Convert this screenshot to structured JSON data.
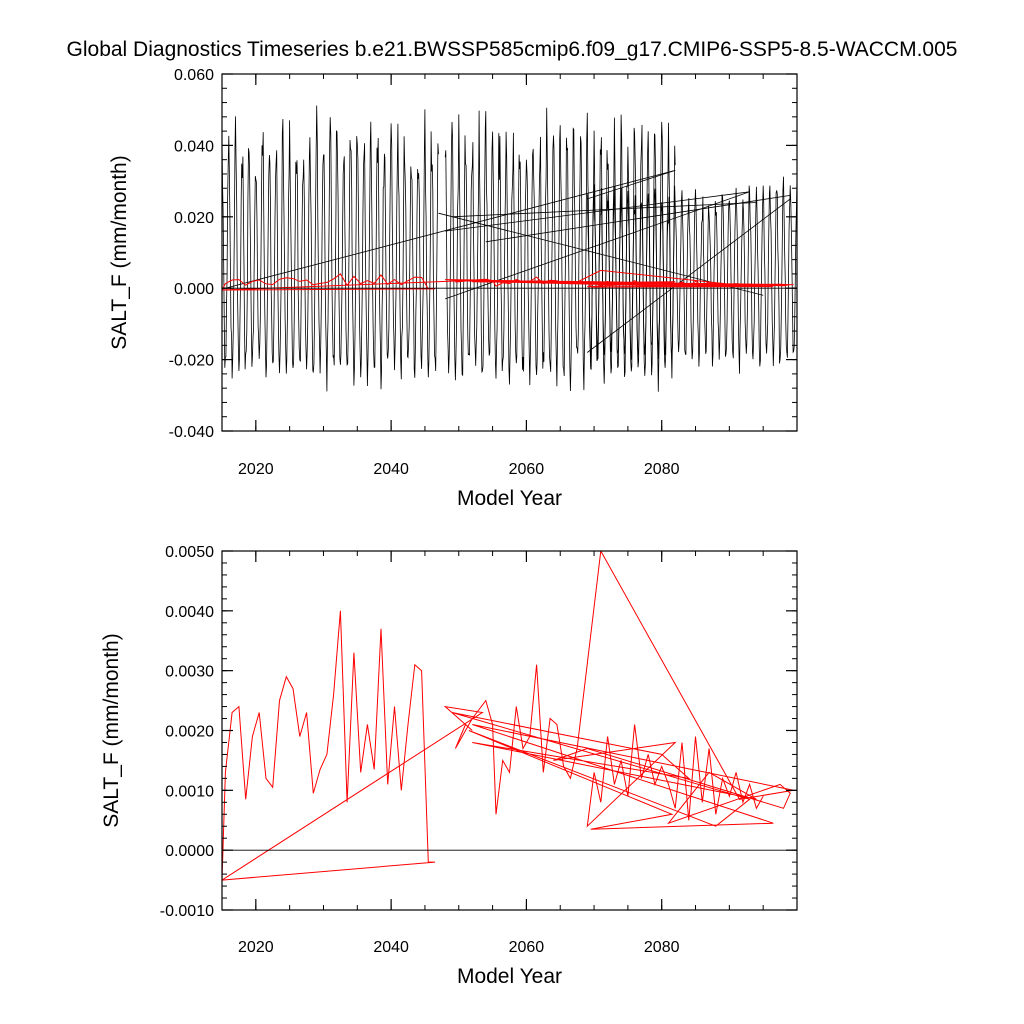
{
  "title": "Global Diagnostics Timeseries b.e21.BWSSP585cmip6.f09_g17.CMIP6-SSP5-8.5-WACCM.005",
  "colors": {
    "monthly_series": "#000000",
    "annual_series": "#ff0000",
    "axis": "#000000",
    "zero_line": "#000000"
  },
  "chart_data": [
    {
      "type": "line",
      "panel": "top",
      "xlabel": "Model Year",
      "ylabel": "SALT_F (mm/month)",
      "xlim": [
        2015,
        2100
      ],
      "ylim": [
        -0.04,
        0.06
      ],
      "xticks": [
        2020,
        2040,
        2060,
        2080
      ],
      "xtick_labels": [
        "2020",
        "2040",
        "2060",
        "2080"
      ],
      "yticks": [
        -0.04,
        -0.02,
        0.0,
        0.02,
        0.04,
        0.06
      ],
      "ytick_labels": [
        "-0.040",
        "-0.020",
        "0.000",
        "0.020",
        "0.040",
        "0.060"
      ],
      "zero_line": 0.0,
      "series": [
        {
          "name": "monthly",
          "color": "#000000",
          "description": "monthly values oscillating roughly between -0.028 and 0.055 with an annual cycle; several restart segments jump back in time",
          "segments": [
            {
              "start_year": 2015.0,
              "end_year": 2047.0,
              "peak": 0.05,
              "trough": -0.026
            },
            {
              "start_year": 2048.0,
              "end_year": 2082.0,
              "peak": 0.05,
              "trough": -0.027
            },
            {
              "start_year": 2069.0,
              "end_year": 2100.0,
              "peak": 0.03,
              "trough": -0.022
            }
          ],
          "connector_lines": [
            [
              [
                2015.5,
                0.0
              ],
              [
                2082.0,
                0.033
              ]
            ],
            [
              [
                2082.0,
                0.033
              ],
              [
                2069.0,
                0.025
              ]
            ],
            [
              [
                2047.0,
                0.021
              ],
              [
                2095.0,
                -0.002
              ]
            ],
            [
              [
                2048.0,
                0.016
              ],
              [
                2093.0,
                0.027
              ]
            ],
            [
              [
                2048.0,
                -0.003
              ],
              [
                2093.0,
                0.027
              ]
            ],
            [
              [
                2069.0,
                -0.018
              ],
              [
                2099.0,
                0.025
              ]
            ],
            [
              [
                2049.0,
                0.02
              ],
              [
                2094.0,
                0.024
              ]
            ],
            [
              [
                2054.0,
                0.013
              ],
              [
                2099.0,
                0.026
              ]
            ]
          ]
        },
        {
          "name": "annual",
          "color": "#ff0000",
          "description": "annual mean values near 0.001 to 0.004",
          "segments": [
            {
              "start_year": 2015.0,
              "end_year": 2047.0
            },
            {
              "start_year": 2048.0,
              "end_year": 2099.0
            }
          ]
        }
      ]
    },
    {
      "type": "line",
      "panel": "bottom",
      "xlabel": "Model Year",
      "ylabel": "SALT_F (mm/month)",
      "xlim": [
        2015,
        2100
      ],
      "ylim": [
        -0.001,
        0.005
      ],
      "xticks": [
        2020,
        2040,
        2060,
        2080
      ],
      "xtick_labels": [
        "2020",
        "2040",
        "2060",
        "2080"
      ],
      "yticks": [
        -0.001,
        0.0,
        0.001,
        0.002,
        0.003,
        0.004,
        0.005
      ],
      "ytick_labels": [
        "-0.0010",
        "0.0000",
        "0.0010",
        "0.0020",
        "0.0030",
        "0.0040",
        "0.0050"
      ],
      "zero_line": 0.0,
      "series": [
        {
          "name": "annual",
          "color": "#ff0000",
          "x": [
            2015.0,
            2015.5,
            2016.5,
            2017.5,
            2018.5,
            2019.5,
            2020.5,
            2021.5,
            2022.5,
            2023.5,
            2024.5,
            2025.5,
            2026.5,
            2027.5,
            2028.5,
            2029.5,
            2030.5,
            2031.5,
            2032.5,
            2033.5,
            2034.5,
            2035.5,
            2036.5,
            2037.5,
            2038.5,
            2039.5,
            2040.5,
            2041.5,
            2042.5,
            2043.5,
            2044.5,
            2045.5,
            2046.5,
            2015.0,
            2053.5,
            2048.0,
            2052.0,
            2051.0,
            2049.5,
            2052.0,
            2054.0,
            2055.0,
            2055.5,
            2056.5,
            2057.5,
            2058.5,
            2059.5,
            2060.5,
            2061.5,
            2062.5,
            2063.5,
            2064.5,
            2065.5,
            2066.5,
            2067.5,
            2071.0,
            2091.5,
            2099.5,
            2052.0,
            2096.5,
            2069.5,
            2081.5,
            2051.5,
            2088.0,
            2093.0,
            2049.0,
            2080.0,
            2084.0,
            2052.0,
            2094.0,
            2087.0,
            2081.0,
            2097.5,
            2099.0,
            2098.0,
            2069.0,
            2064.0,
            2082.0,
            2069.0,
            2070.0,
            2071.0,
            2072.0,
            2073.0,
            2074.0,
            2075.0,
            2076.0,
            2077.0,
            2078.0,
            2079.0,
            2080.0,
            2081.0,
            2082.0,
            2083.0,
            2084.0,
            2085.0,
            2086.0,
            2087.0,
            2088.0,
            2089.0,
            2090.0,
            2091.0,
            2092.0,
            2093.0,
            2094.0,
            2095.0
          ],
          "y": [
            -0.0005,
            0.0013,
            0.0023,
            0.0024,
            0.00085,
            0.0019,
            0.0023,
            0.0012,
            0.00105,
            0.0025,
            0.0029,
            0.0027,
            0.0019,
            0.0023,
            0.00095,
            0.00135,
            0.0016,
            0.0026,
            0.004,
            0.0008,
            0.0033,
            0.0013,
            0.0021,
            0.00135,
            0.0037,
            0.0011,
            0.0024,
            0.001,
            0.0021,
            0.0031,
            0.003,
            -0.0002,
            -0.0002,
            -0.0005,
            0.0023,
            0.0024,
            0.002,
            0.0021,
            0.0017,
            0.0022,
            0.0025,
            0.0021,
            0.0006,
            0.0015,
            0.0013,
            0.0024,
            0.0017,
            0.0019,
            0.0031,
            0.0013,
            0.0022,
            0.0021,
            0.0014,
            0.0012,
            0.0017,
            0.005,
            0.00085,
            0.001,
            0.0021,
            0.00045,
            0.00035,
            0.0006,
            0.002,
            0.0004,
            0.00085,
            0.0023,
            0.0016,
            0.0012,
            0.0018,
            0.00085,
            0.0013,
            0.00045,
            0.0011,
            0.00095,
            0.0007,
            0.0017,
            0.0015,
            0.0018,
            0.0004,
            0.0013,
            0.0008,
            0.0019,
            0.0011,
            0.0015,
            0.0009,
            0.0021,
            0.0012,
            0.0016,
            0.0011,
            0.0014,
            0.0011,
            0.0007,
            0.0018,
            0.0005,
            0.0019,
            0.0008,
            0.0017,
            0.0006,
            0.0012,
            0.0009,
            0.0013,
            0.0008,
            0.0011,
            0.0007,
            0.0009
          ]
        }
      ]
    }
  ]
}
